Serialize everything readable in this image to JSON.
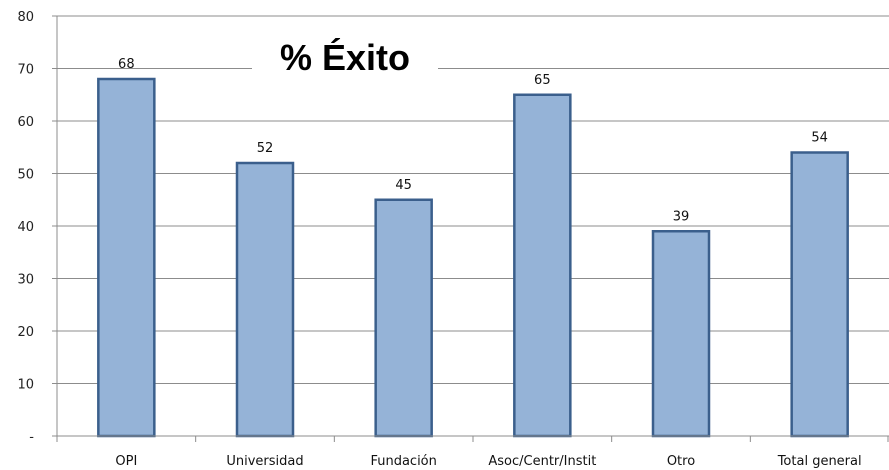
{
  "chart_data": {
    "type": "bar",
    "title": "% Éxito",
    "categories": [
      "OPI",
      "Universidad",
      "Fundación",
      "Asoc/Centr/Instit",
      "Otro",
      "Total general"
    ],
    "values": [
      68,
      52,
      45,
      65,
      39,
      54
    ],
    "data_labels": [
      "68",
      "52",
      "45",
      "65",
      "39",
      "54"
    ],
    "ylim": [
      0,
      80
    ],
    "yticks": [
      0,
      10,
      20,
      30,
      40,
      50,
      60,
      70,
      80
    ],
    "ytick_labels": [
      "-",
      "10",
      "20",
      "30",
      "40",
      "50",
      "60",
      "70",
      "80"
    ],
    "xlabel": "",
    "ylabel": "",
    "grid": true,
    "legend": "none",
    "colors": {
      "bar_fill": "#95b3d7",
      "bar_stroke": "#3b5f8c",
      "grid": "#8c8c8c",
      "axis": "#8c8c8c"
    }
  }
}
